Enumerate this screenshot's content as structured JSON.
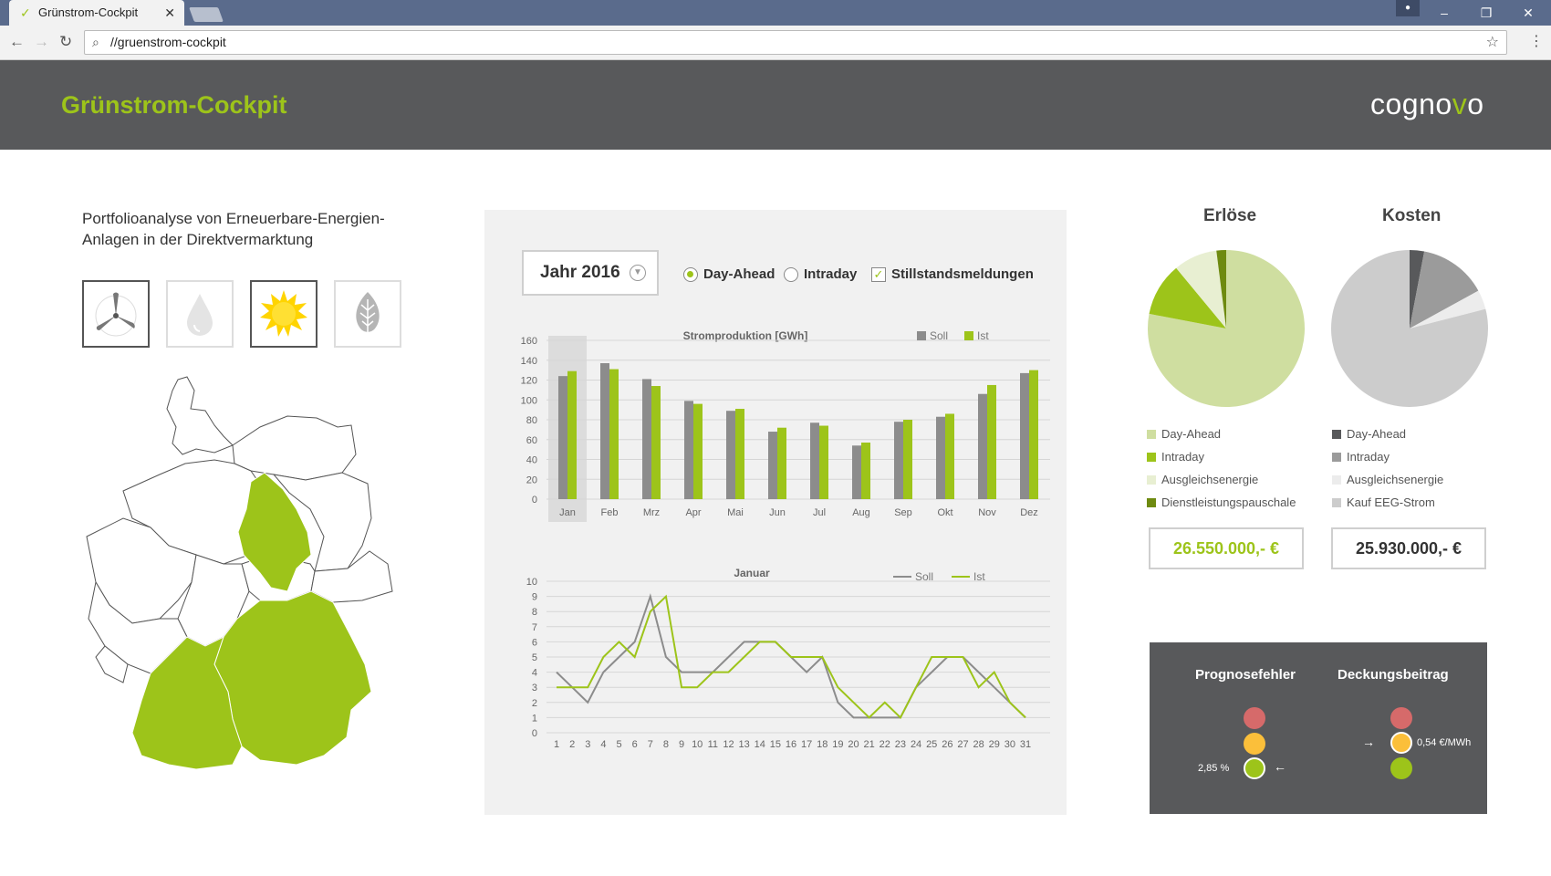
{
  "browser": {
    "tab_title": "Grünstrom-Cockpit",
    "url": "//gruenstrom-cockpit"
  },
  "header": {
    "title": "Grünstrom-Cockpit",
    "logo_text_1": "cogno",
    "logo_text_2": "v",
    "logo_text_3": "o"
  },
  "intro": {
    "text": "Portfolioanalyse von Erneuerbare-Energien-Anlagen in der Direktvermarktung"
  },
  "energy_types": [
    {
      "icon": "wind-icon",
      "selected": true
    },
    {
      "icon": "water-drop-icon",
      "selected": false
    },
    {
      "icon": "sun-icon",
      "selected": true
    },
    {
      "icon": "leaf-icon",
      "selected": false
    }
  ],
  "colors": {
    "accent": "#9dc41a",
    "dark": "#58595b",
    "soll": "#8c8c8c",
    "ist": "#9dc41a"
  },
  "controls": {
    "year_label": "Jahr 2016",
    "opt_day_ahead": "Day-Ahead",
    "opt_intraday": "Intraday",
    "opt_stillstand": "Stillstandsmeldungen"
  },
  "chart_data": [
    {
      "type": "bar",
      "title": "Stromproduktion [GWh]",
      "categories": [
        "Jan",
        "Feb",
        "Mrz",
        "Apr",
        "Mai",
        "Jun",
        "Jul",
        "Aug",
        "Sep",
        "Okt",
        "Nov",
        "Dez"
      ],
      "ylim": [
        0,
        160
      ],
      "yticks": [
        0,
        20,
        40,
        60,
        80,
        100,
        120,
        140,
        160
      ],
      "highlighted_category": "Jan",
      "series": [
        {
          "name": "Soll",
          "color": "#8c8c8c",
          "values": [
            124,
            137,
            121,
            99,
            89,
            68,
            77,
            54,
            78,
            83,
            106,
            127
          ]
        },
        {
          "name": "Ist",
          "color": "#9dc41a",
          "values": [
            129,
            131,
            114,
            96,
            91,
            72,
            74,
            57,
            80,
            86,
            115,
            130
          ]
        }
      ],
      "legend": "top-right",
      "grid": true
    },
    {
      "type": "line",
      "title": "Januar",
      "x": [
        1,
        2,
        3,
        4,
        5,
        6,
        7,
        8,
        9,
        10,
        11,
        12,
        13,
        14,
        15,
        16,
        17,
        18,
        19,
        20,
        21,
        22,
        23,
        24,
        25,
        26,
        27,
        28,
        29,
        30,
        31
      ],
      "ylim": [
        0,
        10
      ],
      "yticks": [
        0,
        1,
        2,
        3,
        4,
        5,
        6,
        7,
        8,
        9,
        10
      ],
      "series": [
        {
          "name": "Soll",
          "color": "#8c8c8c",
          "values": [
            4,
            3,
            2,
            4,
            5,
            6,
            9,
            5,
            4,
            4,
            4,
            5,
            6,
            6,
            6,
            5,
            4,
            5,
            2,
            1,
            1,
            1,
            1,
            3,
            4,
            5,
            5,
            4,
            3,
            2,
            1
          ]
        },
        {
          "name": "Ist",
          "color": "#9dc41a",
          "values": [
            3,
            3,
            3,
            5,
            6,
            5,
            8,
            9,
            3,
            3,
            4,
            4,
            5,
            6,
            6,
            5,
            5,
            5,
            3,
            2,
            1,
            2,
            1,
            3,
            5,
            5,
            5,
            3,
            4,
            2,
            1
          ]
        }
      ],
      "legend": "top-right",
      "grid": true
    },
    {
      "type": "pie",
      "title": "Erlöse",
      "labels": [
        "Day-Ahead",
        "Intraday",
        "Ausgleichsenergie",
        "Dienstleistungspauschale"
      ],
      "values": [
        78,
        11,
        9,
        2
      ],
      "colors": [
        "#cfdea0",
        "#9dc41a",
        "#e8efd2",
        "#6e8a10"
      ]
    },
    {
      "type": "pie",
      "title": "Kosten",
      "labels": [
        "Day-Ahead",
        "Intraday",
        "Ausgleichsenergie",
        "Kauf EEG-Strom"
      ],
      "values": [
        3,
        14,
        4,
        79
      ],
      "colors": [
        "#58595b",
        "#9b9b9b",
        "#ececec",
        "#cccccc"
      ]
    }
  ],
  "revenue": {
    "title": "Erlöse",
    "total": "26.550.000,- €"
  },
  "costs": {
    "title": "Kosten",
    "total": "25.930.000,- €"
  },
  "indicators": {
    "forecast_error": {
      "title": "Prognosefehler",
      "value": "2,85 %",
      "status": "green"
    },
    "contribution_margin": {
      "title": "Deckungsbeitrag",
      "value": "0,54 €/MWh",
      "status": "yellow"
    }
  }
}
